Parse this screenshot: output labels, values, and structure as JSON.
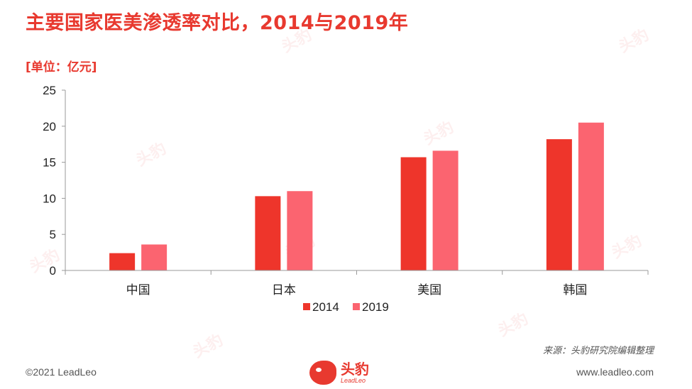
{
  "title": "主要国家医美渗透率对比，2014与2019年",
  "unit": "[单位：亿元]",
  "chart_data": {
    "type": "bar",
    "categories": [
      "中国",
      "日本",
      "美国",
      "韩国"
    ],
    "series": [
      {
        "name": "2014",
        "values": [
          2.4,
          10.3,
          15.7,
          18.2
        ],
        "color": "#ee352b"
      },
      {
        "name": "2019",
        "values": [
          3.6,
          11.0,
          16.6,
          20.5
        ],
        "color": "#fb6470"
      }
    ],
    "ylim": [
      0,
      25
    ],
    "yticks": [
      0,
      5,
      10,
      15,
      20,
      25
    ],
    "xlabel": "",
    "ylabel": "",
    "legend": "bottom",
    "grid": false
  },
  "source": "来源：头豹研究院编辑整理",
  "footer": {
    "copyright": "©2021 LeadLeo",
    "logo_cn": "头豹",
    "logo_en": "LeadLeo",
    "url": "www.leadleo.com"
  },
  "watermark": {
    "text": "头豹"
  }
}
